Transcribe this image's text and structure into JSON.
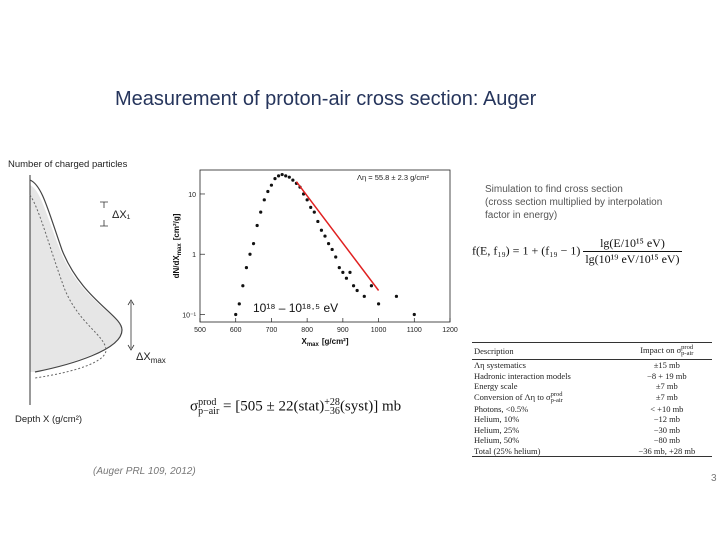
{
  "title": "Measurement of proton-air cross section: Auger",
  "schematic": {
    "y_label": "Number of charged particles",
    "x_label": "Depth X  (g/cm²)",
    "delta_x1": "ΔX₁",
    "delta_xmax": "ΔX",
    "delta_xmax_sub": "max"
  },
  "chart_data": {
    "type": "scatter",
    "x_label": "X",
    "x_label_sub": "max",
    "x_label_unit": "[g/cm²]",
    "y_label": "dN/dX",
    "y_label_sub": "max",
    "y_label_unit": "[cm²/g]",
    "log_y": true,
    "color": "#111111",
    "x": [
      600,
      610,
      620,
      630,
      640,
      650,
      660,
      670,
      680,
      690,
      700,
      710,
      720,
      730,
      740,
      750,
      760,
      770,
      780,
      790,
      800,
      810,
      820,
      830,
      840,
      850,
      860,
      870,
      880,
      890,
      900,
      910,
      920,
      930,
      940,
      960,
      980,
      1000,
      1050,
      1100
    ],
    "values": [
      0.1,
      0.15,
      0.3,
      0.6,
      1.0,
      1.5,
      3,
      5,
      8,
      11,
      14,
      18,
      20,
      21,
      20,
      19,
      17,
      15,
      13,
      10,
      8,
      6,
      5,
      3.5,
      2.5,
      2,
      1.5,
      1.2,
      0.9,
      0.6,
      0.5,
      0.4,
      0.5,
      0.3,
      0.25,
      0.2,
      0.3,
      0.15,
      0.2,
      0.1
    ],
    "fit_line": {
      "x": [
        770,
        1000
      ],
      "values": [
        16,
        0.25
      ],
      "color": "#e02020"
    },
    "xlim": [
      500,
      1200
    ],
    "xticks": [
      500,
      600,
      700,
      800,
      900,
      1000,
      1100,
      1200
    ],
    "ylim": [
      0.075,
      25
    ],
    "yticks": [
      {
        "value": 0.1,
        "label": "10⁻¹"
      },
      1,
      10
    ],
    "annotations": [
      "Λη = 55.8 ± 2.3  g/cm²",
      "10¹⁸ – 10¹⁸·⁵ eV"
    ]
  },
  "simulation_note": [
    "Simulation to find cross section",
    "(cross section multiplied by interpolation",
    "factor in energy)"
  ],
  "interpolation_formula": {
    "lhs": "f(E, f₁₉) = 1 + (f₁₉ − 1)",
    "numerator": "lg(E/10¹⁵ eV)",
    "denominator": "lg(10¹⁹ eV/10¹⁵ eV)"
  },
  "cross_section_formula": {
    "symbol": "σ",
    "sup": "prod",
    "sub": "p−air",
    "body": " = [505 ± 22(stat)",
    "err_up": "+28",
    "err_down": "−36",
    "tail": "(syst)] mb"
  },
  "table": {
    "header": [
      {
        "text": "Description"
      },
      {
        "text": "Impact on σ",
        "sup": "prod",
        "sub": "p-air"
      }
    ],
    "rows": [
      [
        {
          "text": "Λη systematics"
        },
        {
          "text": "±15 mb"
        }
      ],
      [
        {
          "text": "Hadronic interaction models"
        },
        {
          "text": "−8 + 19 mb"
        }
      ],
      [
        {
          "text": "Energy scale"
        },
        {
          "text": "±7 mb"
        }
      ],
      [
        {
          "text": "Conversion of Λη to σ",
          "sup": "prod",
          "sub": "p-air"
        },
        {
          "text": "±7 mb"
        }
      ],
      [
        {
          "text": "Photons, <0.5%"
        },
        {
          "text": "< +10 mb"
        }
      ],
      [
        {
          "text": "Helium, 10%"
        },
        {
          "text": "−12 mb"
        }
      ],
      [
        {
          "text": "Helium, 25%"
        },
        {
          "text": "−30 mb"
        }
      ],
      [
        {
          "text": "Helium, 50%"
        },
        {
          "text": "−80 mb"
        }
      ],
      [
        {
          "text": "Total (25% helium)"
        },
        {
          "text": "−36 mb, +28 mb"
        }
      ]
    ]
  },
  "citation": "(Auger PRL 109, 2012)",
  "page_number": "3"
}
